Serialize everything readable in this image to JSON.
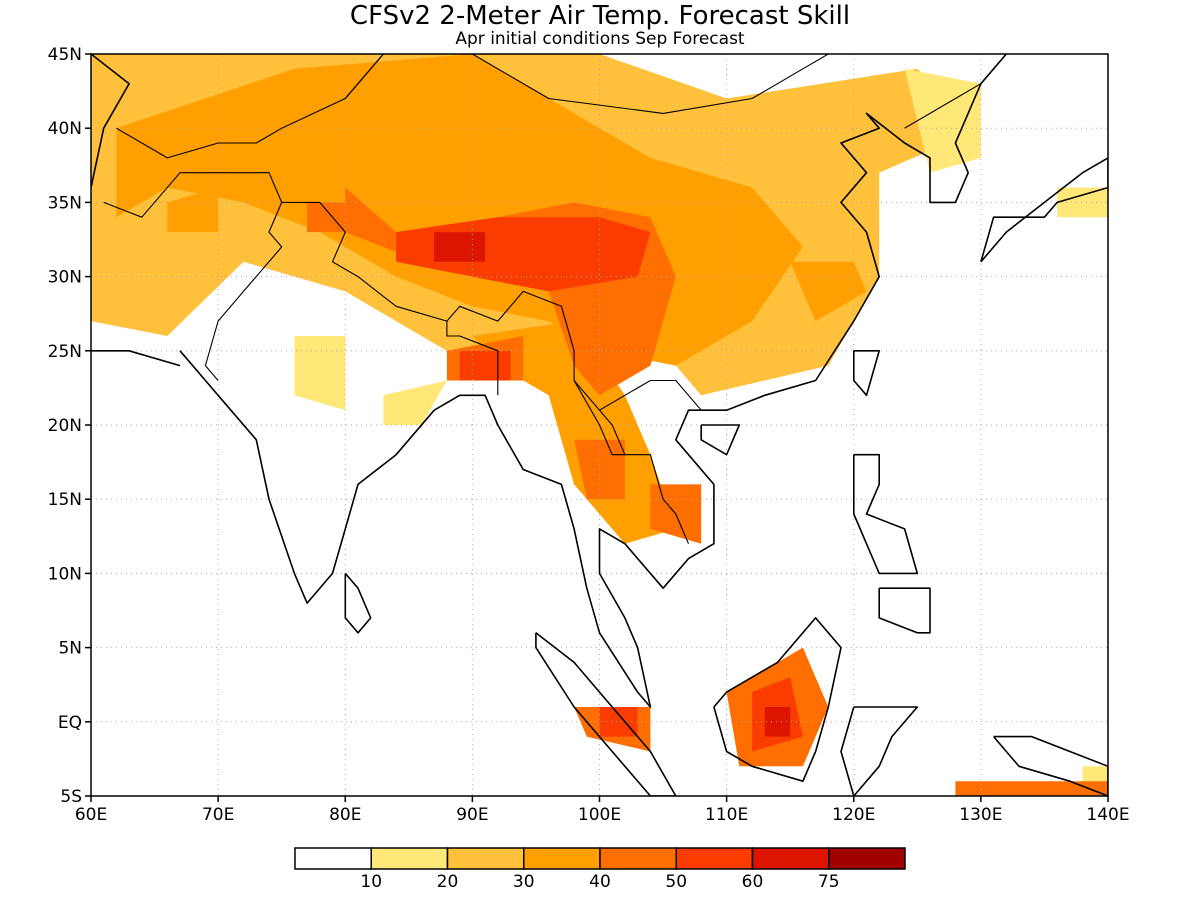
{
  "title": "CFSv2 2-Meter Air Temp. Forecast Skill",
  "subtitle": "Apr initial conditions  Sep Forecast",
  "lat_labels": [
    "45N",
    "40N",
    "35N",
    "30N",
    "25N",
    "20N",
    "15N",
    "10N",
    "5N",
    "EQ",
    "5S"
  ],
  "lon_labels": [
    "60E",
    "70E",
    "80E",
    "90E",
    "100E",
    "110E",
    "120E",
    "130E",
    "140E"
  ],
  "map_extent": {
    "lon_min": 60,
    "lon_max": 140,
    "lat_min": -5,
    "lat_max": 45
  },
  "colorbar": {
    "labels": [
      "10",
      "20",
      "30",
      "40",
      "50",
      "60",
      "75"
    ],
    "colors": [
      "#ffffff",
      "#ffe878",
      "#ffc03c",
      "#ffa000",
      "#ff6e00",
      "#fa3c00",
      "#dc1400",
      "#a00000"
    ]
  },
  "skill_regions": [
    {
      "level": 2,
      "points": [
        [
          60,
          45
        ],
        [
          100,
          45
        ],
        [
          110,
          42
        ],
        [
          125,
          44
        ],
        [
          130,
          40
        ],
        [
          122,
          37
        ],
        [
          122,
          30
        ],
        [
          118,
          24
        ],
        [
          108,
          22
        ],
        [
          106,
          24
        ],
        [
          98,
          26
        ],
        [
          92,
          23
        ],
        [
          86,
          26
        ],
        [
          80,
          29
        ],
        [
          72,
          31
        ],
        [
          66,
          26
        ],
        [
          60,
          27
        ]
      ]
    },
    {
      "level": 1,
      "points": [
        [
          124,
          44
        ],
        [
          130,
          43
        ],
        [
          130,
          38
        ],
        [
          126,
          37
        ]
      ]
    },
    {
      "level": 1,
      "points": [
        [
          136,
          36
        ],
        [
          140,
          36
        ],
        [
          140,
          34
        ],
        [
          136,
          34
        ]
      ]
    },
    {
      "level": 1,
      "points": [
        [
          76,
          26
        ],
        [
          80,
          26
        ],
        [
          80,
          21
        ],
        [
          76,
          22
        ]
      ]
    },
    {
      "level": 1,
      "points": [
        [
          83,
          22
        ],
        [
          88,
          23
        ],
        [
          86,
          20
        ],
        [
          83,
          20
        ]
      ]
    },
    {
      "level": 3,
      "points": [
        [
          62,
          40
        ],
        [
          76,
          44
        ],
        [
          90,
          45
        ],
        [
          98,
          41
        ],
        [
          104,
          38
        ],
        [
          112,
          36
        ],
        [
          116,
          32
        ],
        [
          112,
          27
        ],
        [
          106,
          24
        ],
        [
          100,
          25
        ],
        [
          96,
          27
        ],
        [
          90,
          28
        ],
        [
          84,
          30
        ],
        [
          78,
          33
        ],
        [
          72,
          35
        ],
        [
          66,
          36
        ],
        [
          62,
          34
        ]
      ]
    },
    {
      "level": 3,
      "points": [
        [
          90,
          26
        ],
        [
          98,
          27
        ],
        [
          102,
          22
        ],
        [
          104,
          18
        ],
        [
          106,
          13
        ],
        [
          102,
          12
        ],
        [
          98,
          16
        ],
        [
          96,
          22
        ],
        [
          92,
          24
        ]
      ]
    },
    {
      "level": 3,
      "points": [
        [
          115,
          31
        ],
        [
          120,
          31
        ],
        [
          121,
          29
        ],
        [
          117,
          27
        ]
      ]
    },
    {
      "level": 3,
      "points": [
        [
          66,
          35
        ],
        [
          70,
          36
        ],
        [
          70,
          33
        ],
        [
          66,
          33
        ]
      ]
    },
    {
      "level": 4,
      "points": [
        [
          80,
          36
        ],
        [
          84,
          33
        ],
        [
          92,
          34
        ],
        [
          98,
          35
        ],
        [
          104,
          34
        ],
        [
          106,
          30
        ],
        [
          104,
          24
        ],
        [
          100,
          22
        ],
        [
          98,
          24
        ],
        [
          96,
          29
        ],
        [
          92,
          30
        ],
        [
          86,
          31
        ],
        [
          80,
          33
        ]
      ]
    },
    {
      "level": 4,
      "points": [
        [
          88,
          25
        ],
        [
          94,
          26
        ],
        [
          94,
          23
        ],
        [
          88,
          23
        ]
      ]
    },
    {
      "level": 4,
      "points": [
        [
          98,
          19
        ],
        [
          102,
          19
        ],
        [
          102,
          15
        ],
        [
          99,
          15
        ]
      ]
    },
    {
      "level": 4,
      "points": [
        [
          104,
          16
        ],
        [
          108,
          16
        ],
        [
          108,
          12
        ],
        [
          104,
          13
        ]
      ]
    },
    {
      "level": 4,
      "points": [
        [
          110,
          2
        ],
        [
          116,
          5
        ],
        [
          118,
          1
        ],
        [
          116,
          -3
        ],
        [
          111,
          -3
        ]
      ]
    },
    {
      "level": 4,
      "points": [
        [
          98,
          1
        ],
        [
          104,
          1
        ],
        [
          104,
          -2
        ],
        [
          99,
          -1
        ]
      ]
    },
    {
      "level": 5,
      "points": [
        [
          84,
          33
        ],
        [
          92,
          34
        ],
        [
          100,
          34
        ],
        [
          104,
          33
        ],
        [
          103,
          30
        ],
        [
          96,
          29
        ],
        [
          90,
          30
        ],
        [
          84,
          31
        ]
      ]
    },
    {
      "level": 5,
      "points": [
        [
          89,
          25
        ],
        [
          93,
          25
        ],
        [
          93,
          23
        ],
        [
          89,
          23
        ]
      ]
    },
    {
      "level": 5,
      "points": [
        [
          112,
          2
        ],
        [
          115,
          3
        ],
        [
          116,
          -1
        ],
        [
          112,
          -2
        ]
      ]
    },
    {
      "level": 5,
      "points": [
        [
          100,
          1
        ],
        [
          103,
          1
        ],
        [
          103,
          -1
        ],
        [
          100,
          -1
        ]
      ]
    },
    {
      "level": 6,
      "points": [
        [
          87,
          33
        ],
        [
          91,
          33
        ],
        [
          91,
          31
        ],
        [
          87,
          31
        ]
      ]
    },
    {
      "level": 6,
      "points": [
        [
          113,
          1
        ],
        [
          115,
          1
        ],
        [
          115,
          -1
        ],
        [
          113,
          -1
        ]
      ]
    },
    {
      "level": 4,
      "points": [
        [
          77,
          35
        ],
        [
          80,
          35
        ],
        [
          80,
          33
        ],
        [
          77,
          33
        ]
      ]
    },
    {
      "level": 1,
      "points": [
        [
          138,
          -3
        ],
        [
          140,
          -3
        ],
        [
          140,
          -5
        ],
        [
          138,
          -5
        ]
      ]
    },
    {
      "level": 4,
      "points": [
        [
          128,
          -4
        ],
        [
          140,
          -4
        ],
        [
          140,
          -5
        ],
        [
          128,
          -5
        ]
      ]
    }
  ],
  "coastlines": [
    [
      [
        67,
        25
      ],
      [
        70,
        22
      ],
      [
        73,
        19
      ],
      [
        74,
        15
      ],
      [
        76,
        10
      ],
      [
        77,
        8
      ],
      [
        79,
        10
      ],
      [
        80,
        13
      ],
      [
        81,
        16
      ],
      [
        84,
        18
      ],
      [
        87,
        21
      ],
      [
        89,
        22
      ],
      [
        91,
        22
      ],
      [
        92,
        20
      ],
      [
        94,
        17
      ],
      [
        97,
        16
      ],
      [
        98,
        13
      ],
      [
        99,
        9
      ],
      [
        100,
        6
      ],
      [
        103,
        2
      ],
      [
        104,
        1
      ],
      [
        103,
        5
      ],
      [
        102,
        7
      ],
      [
        100,
        10
      ],
      [
        100,
        13
      ],
      [
        102,
        12
      ],
      [
        105,
        9
      ],
      [
        107,
        11
      ],
      [
        109,
        12
      ],
      [
        109,
        16
      ],
      [
        106,
        19
      ],
      [
        107,
        21
      ],
      [
        110,
        21
      ],
      [
        113,
        22
      ],
      [
        117,
        23
      ],
      [
        120,
        27
      ],
      [
        122,
        30
      ],
      [
        121,
        33
      ],
      [
        119,
        35
      ],
      [
        121,
        37
      ],
      [
        119,
        39
      ],
      [
        122,
        40
      ],
      [
        121,
        41
      ],
      [
        124,
        39
      ],
      [
        126,
        38
      ],
      [
        126,
        35
      ],
      [
        128,
        35
      ],
      [
        129,
        37
      ],
      [
        128,
        39
      ],
      [
        130,
        43
      ],
      [
        132,
        45
      ]
    ],
    [
      [
        80,
        10
      ],
      [
        81,
        9
      ],
      [
        82,
        7
      ],
      [
        81,
        6
      ],
      [
        80,
        7
      ],
      [
        80,
        10
      ]
    ],
    [
      [
        108,
        20
      ],
      [
        111,
        20
      ],
      [
        110,
        18
      ],
      [
        108,
        19
      ],
      [
        108,
        20
      ]
    ],
    [
      [
        120,
        25
      ],
      [
        122,
        25
      ],
      [
        121,
        22
      ],
      [
        120,
        23
      ],
      [
        120,
        25
      ]
    ],
    [
      [
        95,
        6
      ],
      [
        98,
        4
      ],
      [
        101,
        1
      ],
      [
        104,
        -2
      ],
      [
        106,
        -5
      ],
      [
        104,
        -5
      ],
      [
        101,
        -2
      ],
      [
        98,
        1
      ],
      [
        95,
        5
      ],
      [
        95,
        6
      ]
    ],
    [
      [
        109,
        1
      ],
      [
        110,
        2
      ],
      [
        114,
        4
      ],
      [
        117,
        7
      ],
      [
        119,
        5
      ],
      [
        118,
        1
      ],
      [
        117,
        -2
      ],
      [
        116,
        -4
      ],
      [
        112,
        -3
      ],
      [
        110,
        -2
      ],
      [
        109,
        1
      ]
    ],
    [
      [
        120,
        1
      ],
      [
        125,
        1
      ],
      [
        123,
        -1
      ],
      [
        122,
        -3
      ],
      [
        120,
        -5
      ],
      [
        119,
        -2
      ],
      [
        120,
        1
      ]
    ],
    [
      [
        120,
        18
      ],
      [
        122,
        18
      ],
      [
        122,
        16
      ],
      [
        121,
        14
      ],
      [
        124,
        13
      ],
      [
        125,
        10
      ],
      [
        122,
        10
      ],
      [
        120,
        14
      ],
      [
        120,
        18
      ]
    ],
    [
      [
        122,
        9
      ],
      [
        126,
        9
      ],
      [
        126,
        6
      ],
      [
        125,
        6
      ],
      [
        122,
        7
      ],
      [
        122,
        9
      ]
    ],
    [
      [
        130,
        31
      ],
      [
        131,
        34
      ],
      [
        135,
        34
      ],
      [
        136,
        35
      ],
      [
        140,
        36
      ],
      [
        140,
        38
      ],
      [
        138,
        37
      ],
      [
        135,
        35
      ],
      [
        132,
        33
      ],
      [
        130,
        31
      ]
    ],
    [
      [
        131,
        -1
      ],
      [
        134,
        -1
      ],
      [
        137,
        -2
      ],
      [
        140,
        -3
      ],
      [
        140,
        -5
      ],
      [
        137,
        -4
      ],
      [
        133,
        -3
      ],
      [
        131,
        -1
      ]
    ],
    [
      [
        60,
        25
      ],
      [
        63,
        25
      ],
      [
        67,
        24
      ]
    ],
    [
      [
        60,
        36
      ],
      [
        61,
        40
      ],
      [
        63,
        43
      ],
      [
        60,
        45
      ]
    ]
  ],
  "borders": [
    [
      [
        61,
        35
      ],
      [
        64,
        34
      ],
      [
        67,
        37
      ],
      [
        71,
        37
      ],
      [
        74,
        37
      ],
      [
        75,
        35
      ],
      [
        74,
        33
      ],
      [
        75,
        32
      ],
      [
        72,
        29
      ],
      [
        70,
        27
      ],
      [
        69,
        24
      ],
      [
        70,
        23
      ]
    ],
    [
      [
        75,
        35
      ],
      [
        78,
        35
      ],
      [
        80,
        33
      ],
      [
        79,
        31
      ],
      [
        81,
        30
      ],
      [
        84,
        28
      ],
      [
        88,
        27
      ],
      [
        89,
        28
      ],
      [
        92,
        27
      ],
      [
        94,
        29
      ],
      [
        97,
        28
      ],
      [
        98,
        25
      ],
      [
        98,
        23
      ],
      [
        100,
        21
      ],
      [
        102,
        22
      ],
      [
        104,
        23
      ],
      [
        106,
        23
      ],
      [
        108,
        21
      ]
    ],
    [
      [
        88,
        27
      ],
      [
        88,
        26
      ],
      [
        89,
        26
      ],
      [
        92,
        25
      ],
      [
        92,
        22
      ]
    ],
    [
      [
        98,
        23
      ],
      [
        100,
        20
      ],
      [
        101,
        18
      ],
      [
        104,
        18
      ],
      [
        105,
        15
      ],
      [
        106,
        14
      ],
      [
        107,
        12
      ]
    ],
    [
      [
        100,
        21
      ],
      [
        101,
        20
      ],
      [
        102,
        18
      ]
    ],
    [
      [
        62,
        40
      ],
      [
        66,
        38
      ],
      [
        70,
        39
      ],
      [
        73,
        39
      ],
      [
        75,
        40
      ],
      [
        80,
        42
      ],
      [
        83,
        45
      ]
    ],
    [
      [
        80,
        42
      ],
      [
        87,
        49
      ]
    ],
    [
      [
        87,
        45
      ],
      [
        90,
        45
      ],
      [
        96,
        42
      ],
      [
        105,
        41
      ],
      [
        112,
        42
      ],
      [
        116,
        44
      ],
      [
        118,
        45
      ]
    ],
    [
      [
        124,
        40
      ],
      [
        126,
        41
      ],
      [
        128,
        42
      ],
      [
        130,
        43
      ]
    ]
  ]
}
